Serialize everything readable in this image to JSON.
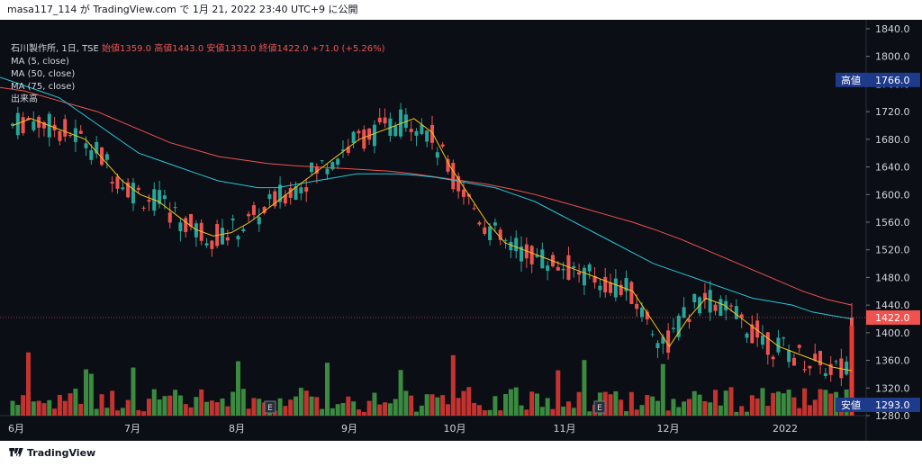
{
  "header": {
    "title": "masa117_114 が TradingView.com で 1月 21, 2022 23:40 UTC+9 に公開"
  },
  "legend": {
    "symbol": "石川製作所, 1日, TSE",
    "ohlc": "始値1359.0 高値1443.0 安値1333.0 終値1422.0 +71.0 (+5.26%)",
    "ma5": "MA (5, close)",
    "ma50": "MA (50, close)",
    "ma75": "MA (75, close)",
    "volume": "出来高"
  },
  "markers": {
    "high_label": "高値",
    "high_value": "1766.0",
    "last_value": "1422.0",
    "low_label": "安値",
    "low_value": "1293.0",
    "earnings": "E"
  },
  "footer": {
    "brand": "TradingView"
  },
  "colors": {
    "up": "#26a69a",
    "down": "#ef5350",
    "ma5": "#f5c518",
    "ma50": "#26c6da",
    "ma75": "#ef5350",
    "volume_up": "#43a047",
    "volume_down": "#e53935"
  },
  "chart_data": {
    "type": "candlestick",
    "y_axis": {
      "min": 1280,
      "max": 1840,
      "ticks": [
        1840,
        1800,
        1760,
        1720,
        1680,
        1640,
        1600,
        1560,
        1520,
        1480,
        1440,
        1400,
        1360,
        1320,
        1280
      ]
    },
    "x_labels": [
      "6月",
      "7月",
      "8月",
      "9月",
      "10月",
      "11月",
      "12月",
      "2022"
    ],
    "ma5_approx": [
      1700,
      1710,
      1700,
      1690,
      1680,
      1650,
      1620,
      1600,
      1590,
      1570,
      1550,
      1540,
      1545,
      1560,
      1580,
      1600,
      1620,
      1640,
      1660,
      1680,
      1690,
      1700,
      1710,
      1690,
      1640,
      1600,
      1560,
      1530,
      1520,
      1510,
      1500,
      1490,
      1480,
      1470,
      1460,
      1420,
      1380,
      1420,
      1450,
      1440,
      1420,
      1400,
      1380,
      1370,
      1360,
      1350,
      1345
    ],
    "ma50_approx": [
      1770,
      1760,
      1750,
      1740,
      1720,
      1700,
      1680,
      1660,
      1650,
      1640,
      1630,
      1620,
      1615,
      1610,
      1610,
      1615,
      1620,
      1625,
      1630,
      1630,
      1630,
      1628,
      1625,
      1620,
      1615,
      1610,
      1600,
      1590,
      1575,
      1560,
      1545,
      1530,
      1515,
      1500,
      1490,
      1480,
      1470,
      1460,
      1450,
      1445,
      1440,
      1430,
      1425,
      1420
    ],
    "ma75_approx": [
      1755,
      1750,
      1740,
      1730,
      1720,
      1705,
      1690,
      1675,
      1665,
      1655,
      1650,
      1645,
      1642,
      1640,
      1638,
      1636,
      1634,
      1630,
      1625,
      1620,
      1615,
      1608,
      1600,
      1590,
      1580,
      1570,
      1560,
      1548,
      1535,
      1520,
      1505,
      1490,
      1475,
      1460,
      1448,
      1440
    ],
    "last_close": 1422,
    "high": 1766,
    "low": 1293
  }
}
